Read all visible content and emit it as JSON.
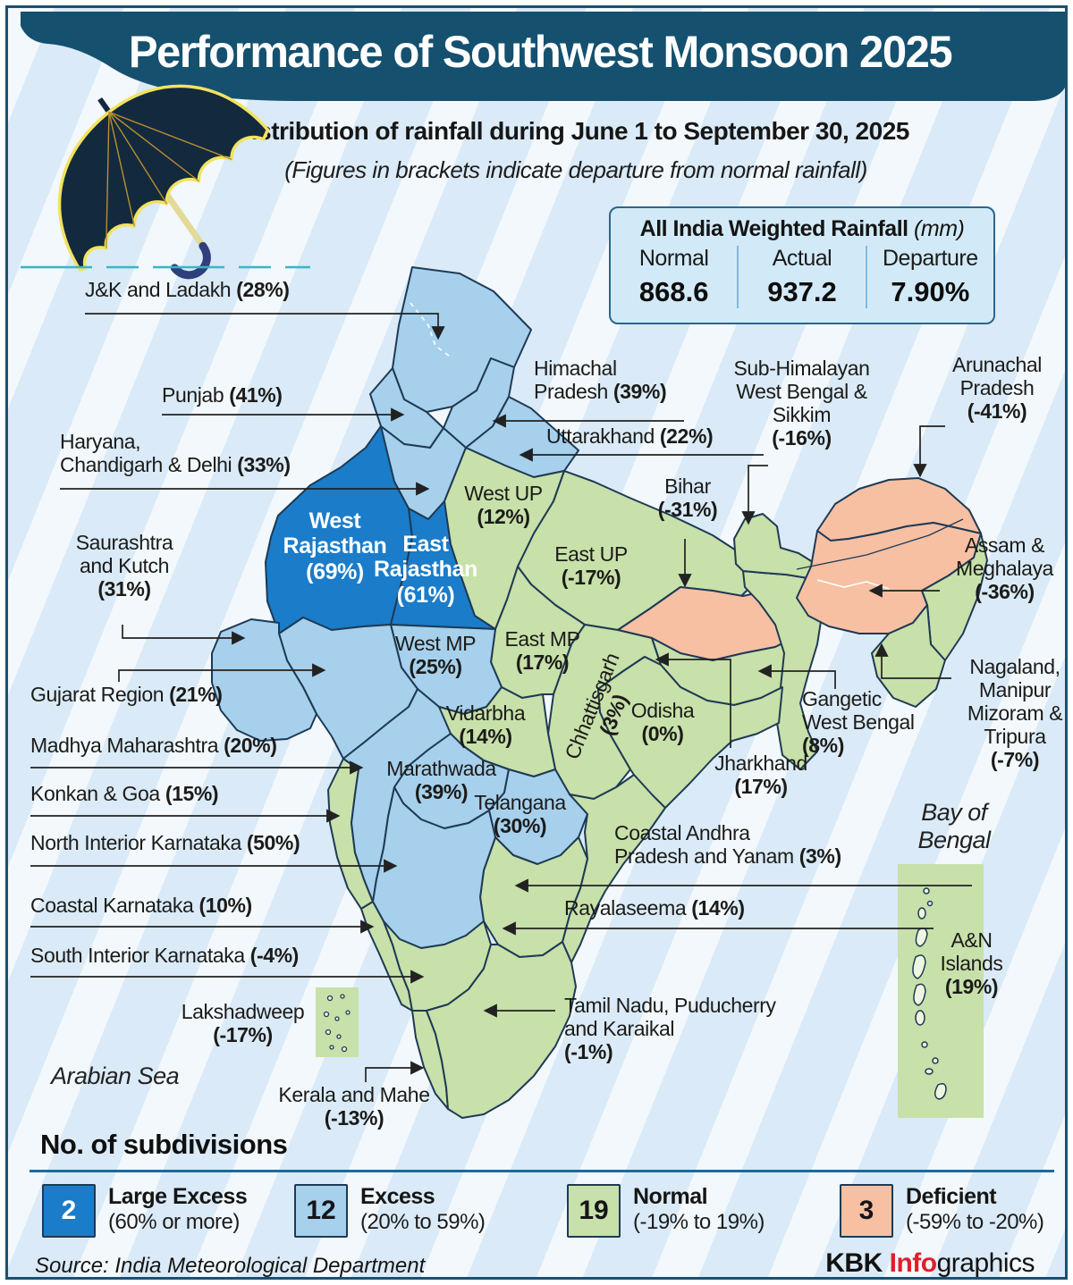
{
  "colors": {
    "large_excess": "#1b7cc9",
    "excess": "#a6d0ec",
    "normal": "#c8e0a9",
    "deficient": "#f7c0a3",
    "header_bg": "#15506f",
    "credit_red": "#e11d2a"
  },
  "header": {
    "title": "Performance of Southwest Monsoon 2025",
    "subtitle": "Distribution of rainfall during June 1 to September 30, 2025",
    "note": "(Figures in brackets indicate departure from normal rainfall)"
  },
  "summary": {
    "title": "All India Weighted Rainfall",
    "unit": "(mm)",
    "columns": [
      {
        "label": "Normal",
        "value": "868.6"
      },
      {
        "label": "Actual",
        "value": "937.2"
      },
      {
        "label": "Departure",
        "value": "7.90%"
      }
    ]
  },
  "map": {
    "sea_labels": [
      {
        "id": "arabiansea",
        "text": "Arabian Sea"
      },
      {
        "id": "bayofbengal",
        "text": "Bay of Bengal"
      }
    ],
    "labels": [
      {
        "id": "jk",
        "lines": [
          "J&K and Ladakh"
        ],
        "pct": "(28%)",
        "inline": true,
        "category": "excess"
      },
      {
        "id": "punjab",
        "lines": [
          "Punjab"
        ],
        "pct": "(41%)",
        "inline": true,
        "category": "excess"
      },
      {
        "id": "haryana",
        "lines": [
          "Haryana,",
          "Chandigarh & Delhi"
        ],
        "pct": "(33%)",
        "inline": true,
        "category": "excess"
      },
      {
        "id": "saurashtra",
        "lines": [
          "Saurashtra",
          "and Kutch"
        ],
        "pct": "(31%)",
        "inline": false,
        "category": "excess"
      },
      {
        "id": "gujarat",
        "lines": [
          "Gujarat Region"
        ],
        "pct": "(21%)",
        "inline": true,
        "category": "excess"
      },
      {
        "id": "madhyamaha",
        "lines": [
          "Madhya Maharashtra"
        ],
        "pct": "(20%)",
        "inline": true,
        "category": "excess"
      },
      {
        "id": "konkan",
        "lines": [
          "Konkan & Goa"
        ],
        "pct": "(15%)",
        "inline": true,
        "category": "normal"
      },
      {
        "id": "nik",
        "lines": [
          "North Interior Karnataka"
        ],
        "pct": "(50%)",
        "inline": true,
        "category": "excess"
      },
      {
        "id": "coastalk",
        "lines": [
          "Coastal Karnataka"
        ],
        "pct": "(10%)",
        "inline": true,
        "category": "normal"
      },
      {
        "id": "sik",
        "lines": [
          "South Interior Karnataka"
        ],
        "pct": "(-4%)",
        "inline": true,
        "category": "normal"
      },
      {
        "id": "lakshadweep",
        "lines": [
          "Lakshadweep"
        ],
        "pct": "(-17%)",
        "inline": false,
        "category": "normal"
      },
      {
        "id": "kerala",
        "lines": [
          "Kerala and Mahe"
        ],
        "pct": "(-13%)",
        "inline": false,
        "category": "normal"
      },
      {
        "id": "westraj",
        "lines": [
          "West",
          "Rajasthan"
        ],
        "pct": "(69%)",
        "inline": false,
        "category": "large_excess"
      },
      {
        "id": "eastraj",
        "lines": [
          "East",
          "Rajasthan"
        ],
        "pct": "(61%)",
        "inline": false,
        "category": "large_excess"
      },
      {
        "id": "westup",
        "lines": [
          "West UP"
        ],
        "pct": "(12%)",
        "inline": false,
        "category": "normal"
      },
      {
        "id": "eastup",
        "lines": [
          "East UP"
        ],
        "pct": "(-17%)",
        "inline": false,
        "category": "normal"
      },
      {
        "id": "westmp",
        "lines": [
          "West MP"
        ],
        "pct": "(25%)",
        "inline": false,
        "category": "excess"
      },
      {
        "id": "eastmp",
        "lines": [
          "East MP"
        ],
        "pct": "(17%)",
        "inline": false,
        "category": "normal"
      },
      {
        "id": "chhattisgarh",
        "lines": [
          "Chhattisgarh"
        ],
        "pct": "(3%)",
        "inline": false,
        "category": "normal"
      },
      {
        "id": "vidarbha",
        "lines": [
          "Vidarbha"
        ],
        "pct": "(14%)",
        "inline": false,
        "category": "normal"
      },
      {
        "id": "odisha",
        "lines": [
          "Odisha"
        ],
        "pct": "(0%)",
        "inline": false,
        "category": "normal"
      },
      {
        "id": "marathwada",
        "lines": [
          "Marathwada"
        ],
        "pct": "(39%)",
        "inline": false,
        "category": "excess"
      },
      {
        "id": "telangana",
        "lines": [
          "Telangana"
        ],
        "pct": "(30%)",
        "inline": false,
        "category": "excess"
      },
      {
        "id": "jharkhand",
        "lines": [
          "Jharkhand"
        ],
        "pct": "(17%)",
        "inline": false,
        "category": "normal"
      },
      {
        "id": "himachal",
        "lines": [
          "Himachal",
          "Pradesh"
        ],
        "pct": "(39%)",
        "inline": true,
        "category": "excess"
      },
      {
        "id": "uttarakhand",
        "lines": [
          "Uttarakhand"
        ],
        "pct": "(22%)",
        "inline": true,
        "category": "excess"
      },
      {
        "id": "shwb",
        "lines": [
          "Sub-Himalayan",
          "West Bengal &",
          "Sikkim"
        ],
        "pct": "(-16%)",
        "inline": false,
        "category": "normal"
      },
      {
        "id": "bihar",
        "lines": [
          "Bihar"
        ],
        "pct": "(-31%)",
        "inline": false,
        "category": "deficient"
      },
      {
        "id": "arunachal",
        "lines": [
          "Arunachal",
          "Pradesh"
        ],
        "pct": "(-41%)",
        "inline": false,
        "category": "deficient"
      },
      {
        "id": "assam",
        "lines": [
          "Assam &",
          "Meghalaya"
        ],
        "pct": "(-36%)",
        "inline": false,
        "category": "deficient"
      },
      {
        "id": "nmmt",
        "lines": [
          "Nagaland,",
          "Manipur",
          "Mizoram &",
          "Tripura"
        ],
        "pct": "(-7%)",
        "inline": false,
        "category": "normal"
      },
      {
        "id": "gangeticwb",
        "lines": [
          "Gangetic",
          "West Bengal"
        ],
        "pct": "(8%)",
        "inline": false,
        "category": "normal"
      },
      {
        "id": "coastalap",
        "lines": [
          "Coastal Andhra",
          "Pradesh and Yanam"
        ],
        "pct": "(3%)",
        "inline": true,
        "category": "normal"
      },
      {
        "id": "rayalaseema",
        "lines": [
          "Rayalaseema"
        ],
        "pct": "(14%)",
        "inline": true,
        "category": "normal"
      },
      {
        "id": "tamilnadu",
        "lines": [
          "Tamil Nadu, Puducherry",
          "and Karaikal"
        ],
        "pct": "(-1%)",
        "inline": false,
        "category": "normal"
      },
      {
        "id": "anislands",
        "lines": [
          "A&N",
          "Islands"
        ],
        "pct": "(19%)",
        "inline": false,
        "category": "normal"
      }
    ]
  },
  "legend": {
    "heading": "No. of subdivisions",
    "items": [
      {
        "count": "2",
        "label": "Large Excess",
        "range": "(60% or more)",
        "category": "large_excess"
      },
      {
        "count": "12",
        "label": "Excess",
        "range": "(20% to 59%)",
        "category": "excess"
      },
      {
        "count": "19",
        "label": "Normal",
        "range": "(-19% to 19%)",
        "category": "normal"
      },
      {
        "count": "3",
        "label": "Deficient",
        "range": "(-59% to -20%)",
        "category": "deficient"
      }
    ]
  },
  "footer": {
    "source": "Source: India Meteorological Department",
    "credit": {
      "pre": "KBK ",
      "mid": "Info",
      "post": "graphics"
    }
  }
}
